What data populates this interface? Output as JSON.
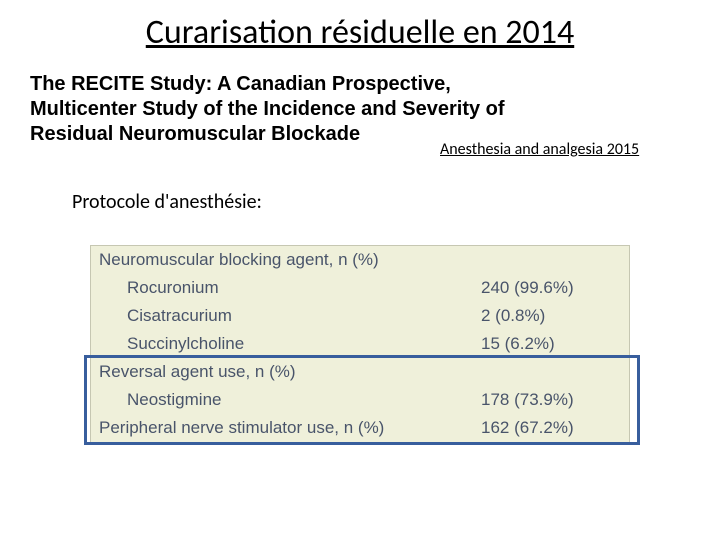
{
  "title": "Curarisation résiduelle en 2014",
  "study_title": "The RECITE Study: A Canadian Prospective, Multicenter Study of the Incidence and Severity of Residual Neuromuscular Blockade",
  "citation": "Anesthesia and analgesia 2015",
  "protocol_label": "Protocole d'anesthésie:",
  "table": {
    "background_color": "#eff0da",
    "border_color": "#c6c7b2",
    "text_color": "#49546a",
    "highlight_border_color": "#385e9d",
    "rows": [
      {
        "type": "header",
        "label": "Neuromuscular blocking agent, n (%)",
        "value": ""
      },
      {
        "type": "item",
        "label": "Rocuronium",
        "value": "240 (99.6%)"
      },
      {
        "type": "item",
        "label": "Cisatracurium",
        "value": "2 (0.8%)"
      },
      {
        "type": "item",
        "label": "Succinylcholine",
        "value": "15 (6.2%)"
      },
      {
        "type": "header",
        "label": "Reversal agent use, n (%)",
        "value": ""
      },
      {
        "type": "item",
        "label": "Neostigmine",
        "value": "178 (73.9%)"
      },
      {
        "type": "header",
        "label": "Peripheral nerve stimulator use, n (%)",
        "value": "162 (67.2%)"
      }
    ]
  }
}
